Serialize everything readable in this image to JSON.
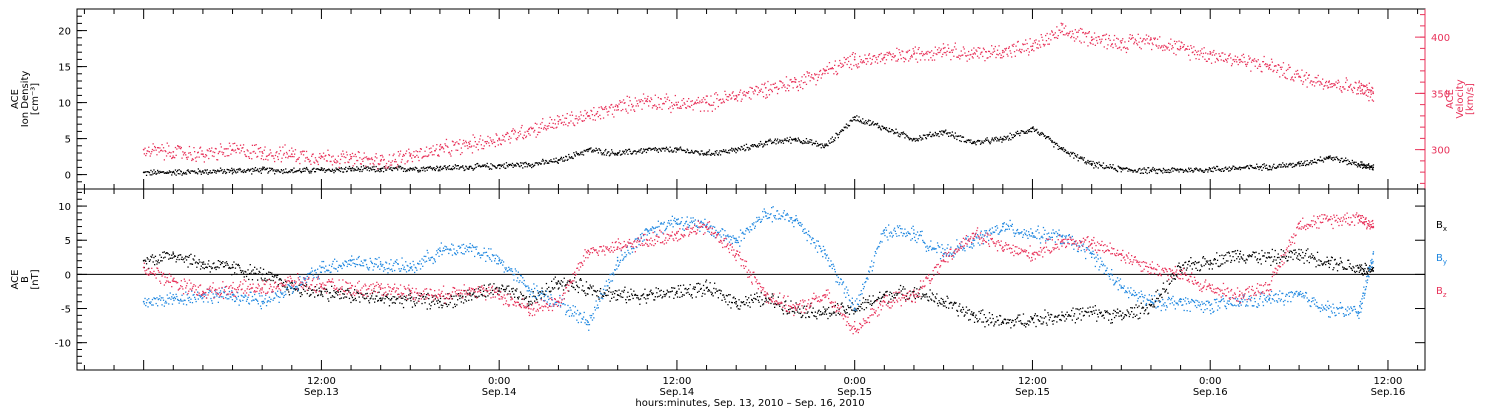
{
  "chart_data": [
    {
      "type": "scatter",
      "panel": "top",
      "ylabel_lines": [
        "ACE",
        "Ion Density",
        "[cm⁻³]"
      ],
      "y2label_lines": [
        "ACE",
        "Velocity",
        "[km/s]"
      ],
      "ylim": [
        -2,
        23
      ],
      "y2lim": [
        265,
        425
      ],
      "yticks": [
        0,
        5,
        10,
        15,
        20
      ],
      "y2ticks": [
        300,
        350,
        400
      ],
      "series": [
        {
          "axis": "left",
          "color": "#000000",
          "x": [
            0,
            2,
            4,
            6,
            8,
            10,
            12,
            14,
            16,
            18,
            20,
            22,
            24,
            26,
            28,
            30,
            32,
            34,
            36,
            38,
            40,
            42,
            44,
            46,
            48,
            50,
            52,
            54,
            56,
            58,
            60,
            62,
            64,
            66,
            68,
            70,
            72,
            74,
            76,
            78,
            80,
            82,
            83
          ],
          "values": [
            0.3,
            0.4,
            0.5,
            0.6,
            0.7,
            0.6,
            0.7,
            0.8,
            0.8,
            0.9,
            1.0,
            1.1,
            1.3,
            1.5,
            2.0,
            3.5,
            3.0,
            3.5,
            3.5,
            3.0,
            3.5,
            4.5,
            5.0,
            4.0,
            8.0,
            6.5,
            5.0,
            6.0,
            4.5,
            5.0,
            6.5,
            3.5,
            1.5,
            0.8,
            0.6,
            0.7,
            0.8,
            1.0,
            1.2,
            1.5,
            2.5,
            1.5,
            1.0
          ]
        },
        {
          "axis": "right",
          "color": "#e8325a",
          "x": [
            0,
            2,
            4,
            6,
            8,
            10,
            12,
            14,
            16,
            18,
            20,
            22,
            24,
            26,
            28,
            30,
            32,
            34,
            36,
            38,
            40,
            42,
            44,
            46,
            48,
            50,
            52,
            54,
            56,
            58,
            60,
            62,
            64,
            66,
            68,
            70,
            72,
            74,
            76,
            78,
            80,
            82,
            83
          ],
          "values": [
            300,
            298,
            296,
            300,
            298,
            296,
            294,
            292,
            290,
            295,
            300,
            305,
            310,
            318,
            325,
            330,
            338,
            345,
            340,
            342,
            348,
            355,
            360,
            370,
            380,
            382,
            385,
            390,
            385,
            388,
            392,
            405,
            400,
            395,
            398,
            390,
            385,
            380,
            375,
            365,
            360,
            355,
            350
          ]
        }
      ]
    },
    {
      "type": "scatter",
      "panel": "bottom",
      "ylabel_lines": [
        "ACE",
        "B",
        "[nT]"
      ],
      "ylim": [
        -14,
        12.5
      ],
      "yticks": [
        -10,
        -5,
        0,
        5,
        10
      ],
      "zero_line": true,
      "series": [
        {
          "name": "B",
          "subscript": "x",
          "color": "#000000",
          "x": [
            0,
            2,
            4,
            6,
            8,
            10,
            12,
            14,
            16,
            18,
            20,
            22,
            24,
            26,
            28,
            30,
            32,
            34,
            36,
            38,
            40,
            42,
            44,
            46,
            48,
            50,
            52,
            54,
            56,
            58,
            60,
            62,
            64,
            66,
            68,
            70,
            72,
            74,
            76,
            78,
            80,
            82,
            83
          ],
          "values": [
            2.0,
            3.0,
            1.5,
            1.0,
            0.0,
            -2.0,
            -2.5,
            -3.0,
            -3.5,
            -3.5,
            -4.0,
            -3.0,
            -2.0,
            -4.0,
            -1.0,
            -2.0,
            -3.0,
            -3.0,
            -2.5,
            -2.0,
            -4.0,
            -3.5,
            -5.0,
            -5.5,
            -5.0,
            -3.0,
            -2.5,
            -4.0,
            -6.0,
            -7.0,
            -6.5,
            -6.0,
            -5.5,
            -6.0,
            -4.5,
            1.0,
            2.0,
            3.0,
            2.5,
            3.0,
            2.0,
            1.0,
            0.5
          ]
        },
        {
          "name": "B",
          "subscript": "y",
          "color": "#1e87e0",
          "x": [
            0,
            2,
            4,
            6,
            8,
            10,
            12,
            14,
            16,
            18,
            20,
            22,
            24,
            26,
            28,
            30,
            32,
            34,
            36,
            38,
            40,
            42,
            44,
            46,
            48,
            50,
            52,
            54,
            56,
            58,
            60,
            62,
            64,
            66,
            68,
            70,
            72,
            74,
            76,
            78,
            80,
            82,
            83
          ],
          "values": [
            -4.0,
            -3.5,
            -3.0,
            -3.0,
            -4.0,
            -2.0,
            1.0,
            2.0,
            1.5,
            1.0,
            3.5,
            4.0,
            2.0,
            -2.0,
            -4.0,
            -7.0,
            2.0,
            6.5,
            8.0,
            7.0,
            5.0,
            9.0,
            8.0,
            3.0,
            -5.0,
            6.5,
            6.0,
            3.0,
            5.0,
            7.0,
            6.0,
            5.5,
            3.0,
            -2.0,
            -4.0,
            -4.0,
            -4.5,
            -4.0,
            -3.5,
            -3.0,
            -5.0,
            -5.5,
            3.0
          ]
        },
        {
          "name": "B",
          "subscript": "z",
          "color": "#e8325a",
          "x": [
            0,
            2,
            4,
            6,
            8,
            10,
            12,
            14,
            16,
            18,
            20,
            22,
            24,
            26,
            28,
            30,
            32,
            34,
            36,
            38,
            40,
            42,
            44,
            46,
            48,
            50,
            52,
            54,
            56,
            58,
            60,
            62,
            64,
            66,
            68,
            70,
            72,
            74,
            76,
            78,
            80,
            82,
            83
          ],
          "values": [
            1.0,
            -1.0,
            -2.5,
            -2.0,
            -2.0,
            -1.0,
            -1.5,
            -2.0,
            -2.0,
            -2.5,
            -3.0,
            -2.0,
            -3.0,
            -5.0,
            -4.0,
            3.5,
            4.0,
            5.0,
            6.0,
            7.0,
            3.0,
            -3.0,
            -5.0,
            -3.0,
            -8.0,
            -4.0,
            -3.0,
            2.0,
            6.0,
            4.0,
            3.0,
            5.0,
            4.5,
            3.0,
            1.0,
            0.0,
            -2.0,
            -3.0,
            -1.5,
            7.5,
            8.0,
            8.5,
            7.0
          ]
        }
      ]
    }
  ],
  "x_axis": {
    "range_hours": [
      -4.5,
      86.5
    ],
    "major_labels": [
      {
        "hour": 12,
        "time": "12:00",
        "date": "Sep.13"
      },
      {
        "hour": 24,
        "time": "0:00",
        "date": "Sep.14"
      },
      {
        "hour": 36,
        "time": "12:00",
        "date": "Sep.14"
      },
      {
        "hour": 48,
        "time": "0:00",
        "date": "Sep.15"
      },
      {
        "hour": 60,
        "time": "12:00",
        "date": "Sep.15"
      },
      {
        "hour": 72,
        "time": "0:00",
        "date": "Sep.16"
      },
      {
        "hour": 84,
        "time": "12:00",
        "date": "Sep.16"
      }
    ],
    "xlabel": "hours:minutes, Sep. 13, 2010 – Sep. 16, 2010"
  },
  "colors": {
    "black": "#000000",
    "red": "#e8325a",
    "blue": "#1e87e0"
  }
}
